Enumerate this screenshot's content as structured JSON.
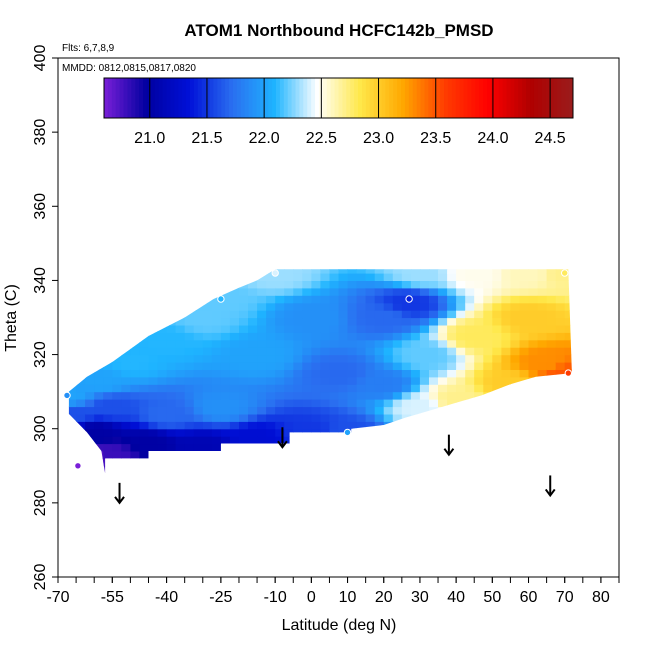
{
  "chart_data": {
    "type": "heatmap",
    "title": "ATOM1 Northbound HCFC142b_PMSD",
    "notes": {
      "flights": "Flts: 6,7,8,9",
      "dates": "MMDD: 0812,0815,0817,0820"
    },
    "xlabel": "Latitude (deg N)",
    "ylabel": "Theta (C)",
    "xlim": [
      -70,
      85
    ],
    "ylim": [
      260,
      400
    ],
    "x_ticks": [
      -70,
      -55,
      -40,
      -25,
      -10,
      0,
      10,
      20,
      30,
      40,
      50,
      60,
      70,
      80
    ],
    "x_tick_labels": [
      "-70",
      "-55",
      "-40",
      "-25",
      "-10",
      "0",
      "10",
      "20",
      "30",
      "40",
      "50",
      "60",
      "70",
      "80"
    ],
    "y_ticks": [
      260,
      280,
      300,
      320,
      340,
      360,
      380,
      400
    ],
    "y_tick_labels": [
      "260",
      "280",
      "300",
      "320",
      "340",
      "360",
      "380",
      "400"
    ],
    "colorbar": {
      "min": 20.6,
      "max": 24.7,
      "ticks": [
        21.0,
        21.5,
        22.0,
        22.5,
        23.0,
        23.5,
        24.0,
        24.5
      ],
      "tick_labels": [
        "21.0",
        "21.5",
        "22.0",
        "22.5",
        "23.0",
        "23.5",
        "24.0",
        "24.5"
      ],
      "colors": [
        "#7a1fd8",
        "#0000a0",
        "#0010d8",
        "#2a6ef0",
        "#1eb4ff",
        "#ffffff",
        "#ffe84a",
        "#ffa800",
        "#ff3c00",
        "#ff0000",
        "#b00000",
        "#9a1c1c"
      ]
    },
    "field_points": [
      {
        "lat": -66.5,
        "theta": 292,
        "value": 20.8
      },
      {
        "lat": -60,
        "theta": 292,
        "value": 20.7
      },
      {
        "lat": -55,
        "theta": 293,
        "value": 20.8
      },
      {
        "lat": -60,
        "theta": 299,
        "value": 21.0
      },
      {
        "lat": -45,
        "theta": 296,
        "value": 21.0
      },
      {
        "lat": -30,
        "theta": 295,
        "value": 21.1
      },
      {
        "lat": -15,
        "theta": 297,
        "value": 21.3
      },
      {
        "lat": 0,
        "theta": 299,
        "value": 21.5
      },
      {
        "lat": 10,
        "theta": 299,
        "value": 21.6
      },
      {
        "lat": -66,
        "theta": 304,
        "value": 21.6
      },
      {
        "lat": -55,
        "theta": 306,
        "value": 21.6
      },
      {
        "lat": -40,
        "theta": 304,
        "value": 21.7
      },
      {
        "lat": -25,
        "theta": 306,
        "value": 21.9
      },
      {
        "lat": -67,
        "theta": 309,
        "value": 22.0
      },
      {
        "lat": -58,
        "theta": 313,
        "value": 22.0
      },
      {
        "lat": -50,
        "theta": 318,
        "value": 22.1
      },
      {
        "lat": -40,
        "theta": 324,
        "value": 22.1
      },
      {
        "lat": -30,
        "theta": 330,
        "value": 22.2
      },
      {
        "lat": -25,
        "theta": 335,
        "value": 22.2
      },
      {
        "lat": -10,
        "theta": 342,
        "value": 22.3
      },
      {
        "lat": -15,
        "theta": 320,
        "value": 22.0
      },
      {
        "lat": 0,
        "theta": 330,
        "value": 21.9
      },
      {
        "lat": 8,
        "theta": 315,
        "value": 21.7
      },
      {
        "lat": 20,
        "theta": 330,
        "value": 21.7
      },
      {
        "lat": 27,
        "theta": 334,
        "value": 21.5
      },
      {
        "lat": 20,
        "theta": 312,
        "value": 21.8
      },
      {
        "lat": 30,
        "theta": 342,
        "value": 22.3
      },
      {
        "lat": 45,
        "theta": 342,
        "value": 22.5
      },
      {
        "lat": 32,
        "theta": 320,
        "value": 22.2
      },
      {
        "lat": 30,
        "theta": 306,
        "value": 22.4
      },
      {
        "lat": 40,
        "theta": 308,
        "value": 22.7
      },
      {
        "lat": 45,
        "theta": 325,
        "value": 22.8
      },
      {
        "lat": 55,
        "theta": 312,
        "value": 23.0
      },
      {
        "lat": 60,
        "theta": 330,
        "value": 23.0
      },
      {
        "lat": 65,
        "theta": 318,
        "value": 23.3
      },
      {
        "lat": 70,
        "theta": 315,
        "value": 23.5
      },
      {
        "lat": 70,
        "theta": 342,
        "value": 22.7
      },
      {
        "lat": 60,
        "theta": 342,
        "value": 22.6
      }
    ],
    "points": [
      {
        "lat": -10,
        "theta": 342,
        "value": 22.4
      },
      {
        "lat": -25,
        "theta": 335,
        "value": 22.1
      },
      {
        "lat": -67.5,
        "theta": 309,
        "value": 21.9
      },
      {
        "lat": 27,
        "theta": 335,
        "value": 21.4
      },
      {
        "lat": 10,
        "theta": 299,
        "value": 22.0
      },
      {
        "lat": 70,
        "theta": 342,
        "value": 22.8
      },
      {
        "lat": 71,
        "theta": 315,
        "value": 23.6
      },
      {
        "lat": -64.5,
        "theta": 290,
        "value": 20.6
      }
    ],
    "arrows": [
      {
        "lat": -53,
        "theta": 280
      },
      {
        "lat": -8,
        "theta": 295
      },
      {
        "lat": 38,
        "theta": 293
      },
      {
        "lat": 66,
        "theta": 282
      }
    ]
  }
}
